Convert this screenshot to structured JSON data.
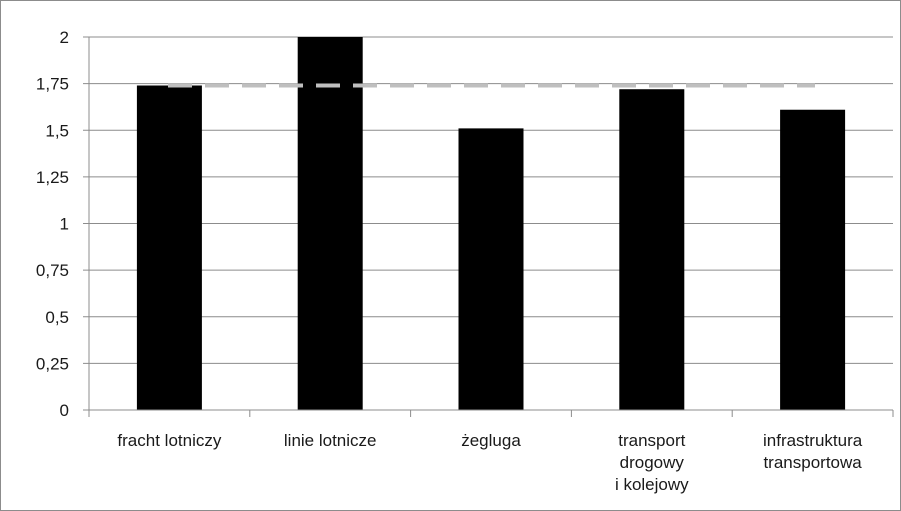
{
  "chart_data": {
    "type": "bar",
    "title": "",
    "xlabel": "",
    "ylabel": "",
    "categories": [
      [
        "fracht lotniczy"
      ],
      [
        "linie lotnicze"
      ],
      [
        "żegluga"
      ],
      [
        "transport",
        "drogowy",
        "i kolejowy"
      ],
      [
        "infrastruktura",
        "transportowa"
      ]
    ],
    "values": [
      1.74,
      2.0,
      1.51,
      1.72,
      1.61
    ],
    "reference_line": {
      "value": 1.74,
      "style": "dashed",
      "color": "#bfbfbf"
    },
    "ylim": [
      0,
      2
    ],
    "yticks": [
      "0",
      "0,25",
      "0,5",
      "0,75",
      "1",
      "1,25",
      "1,5",
      "1,75",
      "2"
    ],
    "grid": true,
    "legend": "none",
    "bar_color": "#000000",
    "grid_color": "#8c8c8c"
  }
}
